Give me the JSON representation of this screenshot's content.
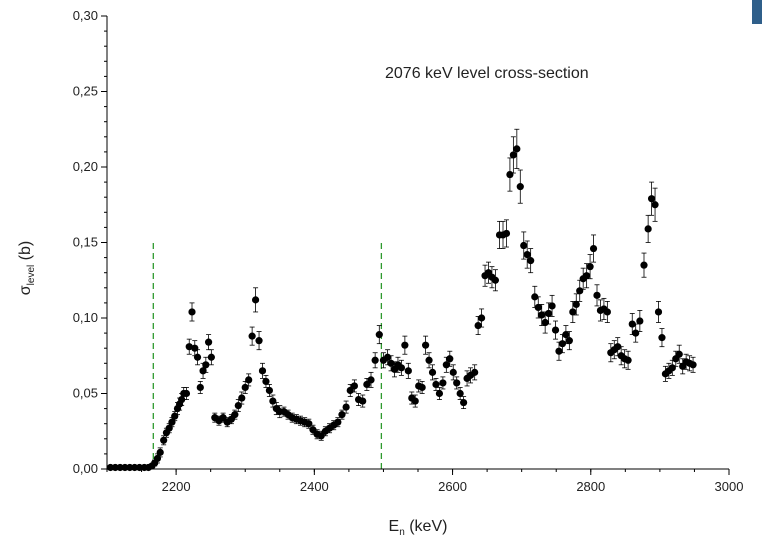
{
  "chart_data": {
    "type": "scatter",
    "title": "",
    "annotation": "2076 keV level cross-section",
    "xlabel": {
      "main": "E",
      "sub": "n",
      "unit": " (keV)"
    },
    "ylabel": {
      "main": "σ",
      "sub": "level",
      "unit": " (b)"
    },
    "xlim": [
      2100,
      3000
    ],
    "ylim": [
      0.0,
      0.3
    ],
    "xticks": [
      2200,
      2400,
      2600,
      2800,
      3000
    ],
    "xtick_labels": [
      "2200",
      "2400",
      "2600",
      "2800",
      "3000"
    ],
    "yticks": [
      0.0,
      0.05,
      0.1,
      0.15,
      0.2,
      0.25,
      0.3
    ],
    "ytick_labels": [
      "0,00",
      "0,05",
      "0,10",
      "0,15",
      "0,20",
      "0,25",
      "0,30"
    ],
    "grid": false,
    "marker_color": "#000000",
    "reference_lines": [
      {
        "x": 2167,
        "y_range": [
          0.0,
          0.151
        ],
        "color": "#2e9a2e",
        "style": "dashed"
      },
      {
        "x": 2497,
        "y_range": [
          0.0,
          0.151
        ],
        "color": "#2e9a2e",
        "style": "dashed"
      }
    ],
    "series": [
      {
        "points": [
          [
            2105,
            0.001,
            0
          ],
          [
            2112,
            0.001,
            0
          ],
          [
            2119,
            0.001,
            0
          ],
          [
            2126,
            0.001,
            0
          ],
          [
            2133,
            0.001,
            0
          ],
          [
            2140,
            0.001,
            0
          ],
          [
            2147,
            0.001,
            0
          ],
          [
            2154,
            0.001,
            0
          ],
          [
            2160,
            0.001,
            0
          ],
          [
            2165,
            0.002,
            0.001
          ],
          [
            2169,
            0.004,
            0.002
          ],
          [
            2173,
            0.007,
            0.003
          ],
          [
            2177,
            0.011,
            0.003
          ],
          [
            2182,
            0.019,
            0.003
          ],
          [
            2186,
            0.024,
            0.003
          ],
          [
            2190,
            0.027,
            0.003
          ],
          [
            2194,
            0.031,
            0.003
          ],
          [
            2198,
            0.035,
            0.003
          ],
          [
            2202,
            0.04,
            0.004
          ],
          [
            2205,
            0.043,
            0.004
          ],
          [
            2208,
            0.046,
            0.004
          ],
          [
            2211,
            0.05,
            0.004
          ],
          [
            2215,
            0.05,
            0.004
          ],
          [
            2219,
            0.081,
            0.005
          ],
          [
            2223,
            0.104,
            0.006
          ],
          [
            2227,
            0.08,
            0.005
          ],
          [
            2231,
            0.074,
            0.005
          ],
          [
            2235,
            0.054,
            0.004
          ],
          [
            2239,
            0.065,
            0.005
          ],
          [
            2243,
            0.069,
            0.005
          ],
          [
            2247,
            0.084,
            0.005
          ],
          [
            2251,
            0.074,
            0.005
          ],
          [
            2256,
            0.034,
            0.003
          ],
          [
            2262,
            0.032,
            0.003
          ],
          [
            2268,
            0.034,
            0.003
          ],
          [
            2274,
            0.031,
            0.003
          ],
          [
            2280,
            0.033,
            0.003
          ],
          [
            2285,
            0.036,
            0.003
          ],
          [
            2290,
            0.042,
            0.004
          ],
          [
            2295,
            0.047,
            0.004
          ],
          [
            2300,
            0.054,
            0.004
          ],
          [
            2305,
            0.059,
            0.004
          ],
          [
            2310,
            0.088,
            0.006
          ],
          [
            2315,
            0.112,
            0.008
          ],
          [
            2320,
            0.085,
            0.006
          ],
          [
            2325,
            0.065,
            0.005
          ],
          [
            2330,
            0.058,
            0.004
          ],
          [
            2335,
            0.052,
            0.004
          ],
          [
            2340,
            0.045,
            0.004
          ],
          [
            2345,
            0.04,
            0.004
          ],
          [
            2350,
            0.038,
            0.004
          ],
          [
            2356,
            0.038,
            0.003
          ],
          [
            2362,
            0.036,
            0.003
          ],
          [
            2368,
            0.034,
            0.003
          ],
          [
            2374,
            0.033,
            0.003
          ],
          [
            2380,
            0.032,
            0.003
          ],
          [
            2386,
            0.031,
            0.003
          ],
          [
            2392,
            0.03,
            0.003
          ],
          [
            2398,
            0.026,
            0.003
          ],
          [
            2404,
            0.023,
            0.003
          ],
          [
            2410,
            0.022,
            0.003
          ],
          [
            2416,
            0.025,
            0.003
          ],
          [
            2422,
            0.027,
            0.003
          ],
          [
            2428,
            0.029,
            0.003
          ],
          [
            2434,
            0.031,
            0.003
          ],
          [
            2440,
            0.036,
            0.003
          ],
          [
            2446,
            0.041,
            0.004
          ],
          [
            2452,
            0.052,
            0.004
          ],
          [
            2458,
            0.055,
            0.004
          ],
          [
            2464,
            0.046,
            0.004
          ],
          [
            2470,
            0.045,
            0.004
          ],
          [
            2476,
            0.056,
            0.004
          ],
          [
            2482,
            0.059,
            0.005
          ],
          [
            2488,
            0.072,
            0.005
          ],
          [
            2494,
            0.089,
            0.006
          ],
          [
            2500,
            0.072,
            0.005
          ],
          [
            2506,
            0.074,
            0.005
          ],
          [
            2511,
            0.07,
            0.005
          ],
          [
            2516,
            0.066,
            0.005
          ],
          [
            2521,
            0.069,
            0.005
          ],
          [
            2526,
            0.067,
            0.005
          ],
          [
            2531,
            0.082,
            0.006
          ],
          [
            2536,
            0.065,
            0.005
          ],
          [
            2541,
            0.047,
            0.004
          ],
          [
            2546,
            0.045,
            0.004
          ],
          [
            2551,
            0.055,
            0.004
          ],
          [
            2556,
            0.054,
            0.004
          ],
          [
            2561,
            0.082,
            0.006
          ],
          [
            2566,
            0.072,
            0.005
          ],
          [
            2571,
            0.064,
            0.005
          ],
          [
            2576,
            0.056,
            0.004
          ],
          [
            2581,
            0.05,
            0.004
          ],
          [
            2586,
            0.057,
            0.004
          ],
          [
            2591,
            0.069,
            0.005
          ],
          [
            2596,
            0.073,
            0.005
          ],
          [
            2601,
            0.064,
            0.005
          ],
          [
            2606,
            0.057,
            0.004
          ],
          [
            2611,
            0.05,
            0.004
          ],
          [
            2616,
            0.044,
            0.004
          ],
          [
            2621,
            0.06,
            0.005
          ],
          [
            2626,
            0.062,
            0.005
          ],
          [
            2632,
            0.064,
            0.005
          ],
          [
            2637,
            0.095,
            0.006
          ],
          [
            2642,
            0.1,
            0.006
          ],
          [
            2647,
            0.128,
            0.007
          ],
          [
            2652,
            0.13,
            0.007
          ],
          [
            2657,
            0.127,
            0.007
          ],
          [
            2662,
            0.125,
            0.007
          ],
          [
            2668,
            0.155,
            0.009
          ],
          [
            2673,
            0.155,
            0.009
          ],
          [
            2678,
            0.156,
            0.009
          ],
          [
            2683,
            0.195,
            0.011
          ],
          [
            2688,
            0.208,
            0.012
          ],
          [
            2693,
            0.212,
            0.013
          ],
          [
            2698,
            0.187,
            0.011
          ],
          [
            2703,
            0.148,
            0.009
          ],
          [
            2708,
            0.142,
            0.009
          ],
          [
            2713,
            0.138,
            0.008
          ],
          [
            2719,
            0.114,
            0.007
          ],
          [
            2724,
            0.107,
            0.007
          ],
          [
            2729,
            0.102,
            0.007
          ],
          [
            2734,
            0.097,
            0.007
          ],
          [
            2739,
            0.103,
            0.007
          ],
          [
            2744,
            0.108,
            0.007
          ],
          [
            2749,
            0.092,
            0.006
          ],
          [
            2754,
            0.078,
            0.006
          ],
          [
            2759,
            0.083,
            0.006
          ],
          [
            2764,
            0.089,
            0.006
          ],
          [
            2769,
            0.085,
            0.006
          ],
          [
            2774,
            0.104,
            0.007
          ],
          [
            2779,
            0.109,
            0.007
          ],
          [
            2784,
            0.118,
            0.007
          ],
          [
            2789,
            0.126,
            0.007
          ],
          [
            2794,
            0.128,
            0.008
          ],
          [
            2799,
            0.134,
            0.008
          ],
          [
            2804,
            0.146,
            0.009
          ],
          [
            2809,
            0.115,
            0.007
          ],
          [
            2814,
            0.105,
            0.007
          ],
          [
            2819,
            0.106,
            0.007
          ],
          [
            2824,
            0.104,
            0.007
          ],
          [
            2829,
            0.077,
            0.006
          ],
          [
            2834,
            0.079,
            0.006
          ],
          [
            2839,
            0.081,
            0.006
          ],
          [
            2844,
            0.075,
            0.006
          ],
          [
            2849,
            0.073,
            0.006
          ],
          [
            2854,
            0.072,
            0.006
          ],
          [
            2860,
            0.096,
            0.007
          ],
          [
            2865,
            0.09,
            0.006
          ],
          [
            2871,
            0.098,
            0.007
          ],
          [
            2877,
            0.135,
            0.008
          ],
          [
            2883,
            0.159,
            0.009
          ],
          [
            2888,
            0.179,
            0.011
          ],
          [
            2893,
            0.175,
            0.011
          ],
          [
            2898,
            0.104,
            0.007
          ],
          [
            2903,
            0.087,
            0.006
          ],
          [
            2908,
            0.063,
            0.005
          ],
          [
            2913,
            0.065,
            0.005
          ],
          [
            2918,
            0.067,
            0.005
          ],
          [
            2923,
            0.073,
            0.005
          ],
          [
            2928,
            0.076,
            0.006
          ],
          [
            2933,
            0.068,
            0.005
          ],
          [
            2938,
            0.071,
            0.005
          ],
          [
            2943,
            0.07,
            0.005
          ],
          [
            2948,
            0.069,
            0.005
          ]
        ]
      }
    ]
  }
}
